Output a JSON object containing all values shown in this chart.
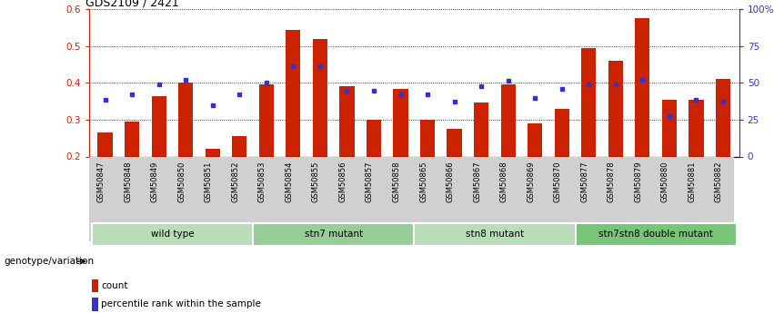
{
  "title": "GDS2109 / 2421",
  "samples": [
    "GSM50847",
    "GSM50848",
    "GSM50849",
    "GSM50850",
    "GSM50851",
    "GSM50852",
    "GSM50853",
    "GSM50854",
    "GSM50855",
    "GSM50856",
    "GSM50857",
    "GSM50858",
    "GSM50865",
    "GSM50866",
    "GSM50867",
    "GSM50868",
    "GSM50869",
    "GSM50870",
    "GSM50877",
    "GSM50878",
    "GSM50879",
    "GSM50880",
    "GSM50881",
    "GSM50882"
  ],
  "bar_values": [
    0.265,
    0.295,
    0.365,
    0.4,
    0.22,
    0.255,
    0.395,
    0.545,
    0.52,
    0.39,
    0.3,
    0.385,
    0.3,
    0.275,
    0.348,
    0.395,
    0.29,
    0.33,
    0.495,
    0.46,
    0.575,
    0.355,
    0.355,
    0.41
  ],
  "blue_values": [
    0.355,
    0.37,
    0.395,
    0.408,
    0.34,
    0.37,
    0.4,
    0.445,
    0.445,
    0.38,
    0.38,
    0.37,
    0.37,
    0.35,
    0.39,
    0.405,
    0.36,
    0.385,
    0.395,
    0.395,
    0.408,
    0.31,
    0.355,
    0.35
  ],
  "groups": [
    {
      "label": "wild type",
      "start": 0,
      "end": 6
    },
    {
      "label": "stn7 mutant",
      "start": 6,
      "end": 12
    },
    {
      "label": "stn8 mutant",
      "start": 12,
      "end": 18
    },
    {
      "label": "stn7stn8 double mutant",
      "start": 18,
      "end": 24
    }
  ],
  "group_colors": [
    "#b8ddb8",
    "#98cc98",
    "#b8ddb8",
    "#78c478"
  ],
  "bar_color": "#cc2200",
  "blue_color": "#3333cc",
  "ylim_left": [
    0.2,
    0.6
  ],
  "ylim_right": [
    0,
    100
  ],
  "yticks_left": [
    0.2,
    0.3,
    0.4,
    0.5,
    0.6
  ],
  "yticks_right": [
    0,
    25,
    50,
    75,
    100
  ],
  "ytick_labels_right": [
    "0",
    "25",
    "50",
    "75",
    "100%"
  ],
  "legend_count": "count",
  "legend_pct": "percentile rank within the sample",
  "genotype_label": "genotype/variation"
}
